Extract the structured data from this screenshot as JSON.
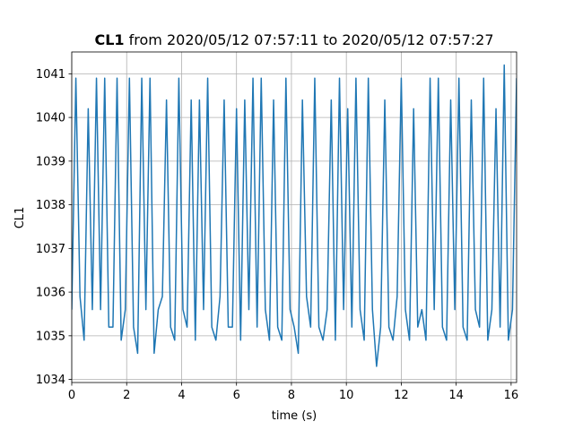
{
  "chart_data": {
    "type": "line",
    "title_bold": "CL1",
    "title_rest": "from 2020/05/12 07:57:11 to 2020/05/12 07:57:27",
    "x_label": "time (s)",
    "y_label": "CL1",
    "x": [
      0,
      0.15,
      0.3,
      0.45,
      0.6,
      0.75,
      0.9,
      1.05,
      1.2,
      1.35,
      1.5,
      1.65,
      1.8,
      1.95,
      2.1,
      2.25,
      2.4,
      2.55,
      2.7,
      2.85,
      3,
      3.15,
      3.3,
      3.45,
      3.6,
      3.75,
      3.9,
      4.05,
      4.2,
      4.35,
      4.5,
      4.65,
      4.8,
      4.95,
      5.1,
      5.25,
      5.4,
      5.55,
      5.7,
      5.85,
      6,
      6.15,
      6.3,
      6.45,
      6.6,
      6.75,
      6.9,
      7.05,
      7.2,
      7.35,
      7.5,
      7.65,
      7.8,
      7.95,
      8.1,
      8.25,
      8.4,
      8.55,
      8.7,
      8.85,
      9,
      9.15,
      9.3,
      9.45,
      9.6,
      9.75,
      9.9,
      10.05,
      10.2,
      10.35,
      10.5,
      10.65,
      10.8,
      10.95,
      11.1,
      11.25,
      11.4,
      11.55,
      11.7,
      11.85,
      12,
      12.15,
      12.3,
      12.45,
      12.6,
      12.75,
      12.9,
      13.05,
      13.2,
      13.35,
      13.5,
      13.65,
      13.8,
      13.95,
      14.1,
      14.25,
      14.4,
      14.55,
      14.7,
      14.85,
      15,
      15.15,
      15.3,
      15.45,
      15.6,
      15.75,
      15.9,
      16.05,
      16.2
    ],
    "series": [
      {
        "name": "CL1",
        "color": "#1f77b4",
        "values": [
          1035.6,
          1040.9,
          1035.9,
          1034.9,
          1040.2,
          1035.6,
          1040.9,
          1035.6,
          1040.9,
          1035.2,
          1035.2,
          1040.9,
          1034.9,
          1035.6,
          1040.9,
          1035.2,
          1034.6,
          1040.9,
          1035.6,
          1040.9,
          1034.6,
          1035.6,
          1035.9,
          1040.4,
          1035.2,
          1034.9,
          1040.9,
          1035.6,
          1035.2,
          1040.4,
          1034.9,
          1040.4,
          1035.6,
          1040.9,
          1035.2,
          1034.9,
          1035.9,
          1040.4,
          1035.2,
          1035.2,
          1040.2,
          1034.9,
          1040.4,
          1035.6,
          1040.9,
          1035.2,
          1040.9,
          1035.6,
          1034.9,
          1040.4,
          1035.2,
          1034.9,
          1040.9,
          1035.6,
          1035.2,
          1034.6,
          1040.4,
          1035.9,
          1035.2,
          1040.9,
          1035.2,
          1034.9,
          1035.6,
          1040.4,
          1034.9,
          1040.9,
          1035.6,
          1040.2,
          1035.2,
          1040.9,
          1035.6,
          1034.9,
          1040.9,
          1035.6,
          1034.3,
          1035.2,
          1040.4,
          1035.2,
          1034.9,
          1035.9,
          1040.9,
          1035.6,
          1034.9,
          1040.2,
          1035.2,
          1035.6,
          1034.9,
          1040.9,
          1035.6,
          1040.9,
          1035.2,
          1034.9,
          1040.4,
          1035.6,
          1040.9,
          1035.2,
          1034.9,
          1040.4,
          1035.6,
          1035.2,
          1040.9,
          1034.9,
          1035.6,
          1040.2,
          1035.2,
          1041.2,
          1034.9,
          1035.6,
          1040.9
        ]
      }
    ],
    "xlim": [
      0,
      16.2
    ],
    "xticks": [
      0,
      2,
      4,
      6,
      8,
      10,
      12,
      14,
      16
    ],
    "ylim": [
      1033.93,
      1041.5
    ],
    "yticks": [
      1034,
      1035,
      1036,
      1037,
      1038,
      1039,
      1040,
      1041
    ],
    "grid": true
  }
}
